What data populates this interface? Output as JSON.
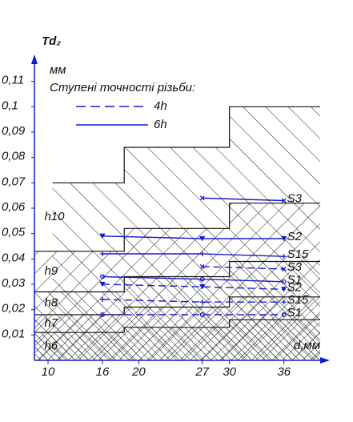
{
  "chart_data": {
    "type": "line",
    "y_label": "Td₂",
    "y_unit": "мм",
    "x_label": "d,мм",
    "legend_title": "Ступені точності різьби:",
    "legend": [
      {
        "label": "4h",
        "dash": true
      },
      {
        "label": "6h",
        "dash": false
      }
    ],
    "xlim": [
      8.5,
      40
    ],
    "ylim": [
      0,
      0.12
    ],
    "xticks": [
      10,
      16,
      20,
      27,
      30,
      36
    ],
    "yticks": [
      {
        "value": 0.01,
        "label": "0,01"
      },
      {
        "value": 0.02,
        "label": "0,02"
      },
      {
        "value": 0.03,
        "label": "0,03"
      },
      {
        "value": 0.04,
        "label": "0,04"
      },
      {
        "value": 0.05,
        "label": "0,05"
      },
      {
        "value": 0.06,
        "label": "0,06"
      },
      {
        "value": 0.07,
        "label": "0,07"
      },
      {
        "value": 0.08,
        "label": "0,08"
      },
      {
        "value": 0.09,
        "label": "0,09"
      },
      {
        "value": 0.1,
        "label": "0,1"
      },
      {
        "value": 0.11,
        "label": "0,11"
      }
    ],
    "zones": [
      {
        "name": "h10",
        "x": [
          10.5,
          18.4,
          18.4,
          30,
          30,
          40
        ],
        "y": [
          0.07,
          0.07,
          0.084,
          0.084,
          0.1,
          0.1
        ]
      },
      {
        "name": "h9",
        "x": [
          8.5,
          18.4,
          18.4,
          30,
          30,
          40
        ],
        "y": [
          0.043,
          0.043,
          0.052,
          0.052,
          0.062,
          0.062
        ]
      },
      {
        "name": "h8",
        "x": [
          8.5,
          18.4,
          18.4,
          30,
          30,
          40
        ],
        "y": [
          0.027,
          0.027,
          0.033,
          0.033,
          0.039,
          0.039
        ]
      },
      {
        "name": "h7",
        "x": [
          8.5,
          18.4,
          18.4,
          30,
          30,
          40
        ],
        "y": [
          0.018,
          0.018,
          0.021,
          0.021,
          0.025,
          0.025
        ]
      },
      {
        "name": "h6",
        "x": [
          8.5,
          18.4,
          18.4,
          30,
          30,
          40
        ],
        "y": [
          0.011,
          0.011,
          0.013,
          0.013,
          0.016,
          0.016
        ]
      }
    ],
    "series": [
      {
        "name": "S3",
        "dash": false,
        "marker": "x",
        "color": "#1a1acc",
        "x": [
          27,
          36
        ],
        "values": [
          0.064,
          0.063
        ]
      },
      {
        "name": "S2",
        "dash": false,
        "marker": "v",
        "color": "#1a1acc",
        "x": [
          16,
          27,
          36
        ],
        "values": [
          0.049,
          0.048,
          0.048
        ]
      },
      {
        "name": "S15",
        "dash": false,
        "marker": "+",
        "color": "#1a1acc",
        "x": [
          16,
          27,
          36
        ],
        "values": [
          0.042,
          0.042,
          0.041
        ]
      },
      {
        "name": "S3",
        "dash": true,
        "marker": "x",
        "color": "#1a1acc",
        "x": [
          27,
          36
        ],
        "values": [
          0.037,
          0.036
        ]
      },
      {
        "name": "S1",
        "dash": false,
        "marker": "o",
        "color": "#1a1acc",
        "x": [
          16,
          27,
          36
        ],
        "values": [
          0.033,
          0.032,
          0.031
        ]
      },
      {
        "name": "S2",
        "dash": true,
        "marker": "v",
        "color": "#1a1acc",
        "x": [
          16,
          27,
          36
        ],
        "values": [
          0.03,
          0.029,
          0.028
        ]
      },
      {
        "name": "S15",
        "dash": true,
        "marker": "+",
        "color": "#1a1acc",
        "x": [
          16,
          27,
          36
        ],
        "values": [
          0.024,
          0.023,
          0.023
        ]
      },
      {
        "name": "S1",
        "dash": true,
        "marker": "o",
        "color": "#1a1acc",
        "x": [
          16,
          27,
          36
        ],
        "values": [
          0.018,
          0.018,
          0.018
        ]
      }
    ]
  }
}
